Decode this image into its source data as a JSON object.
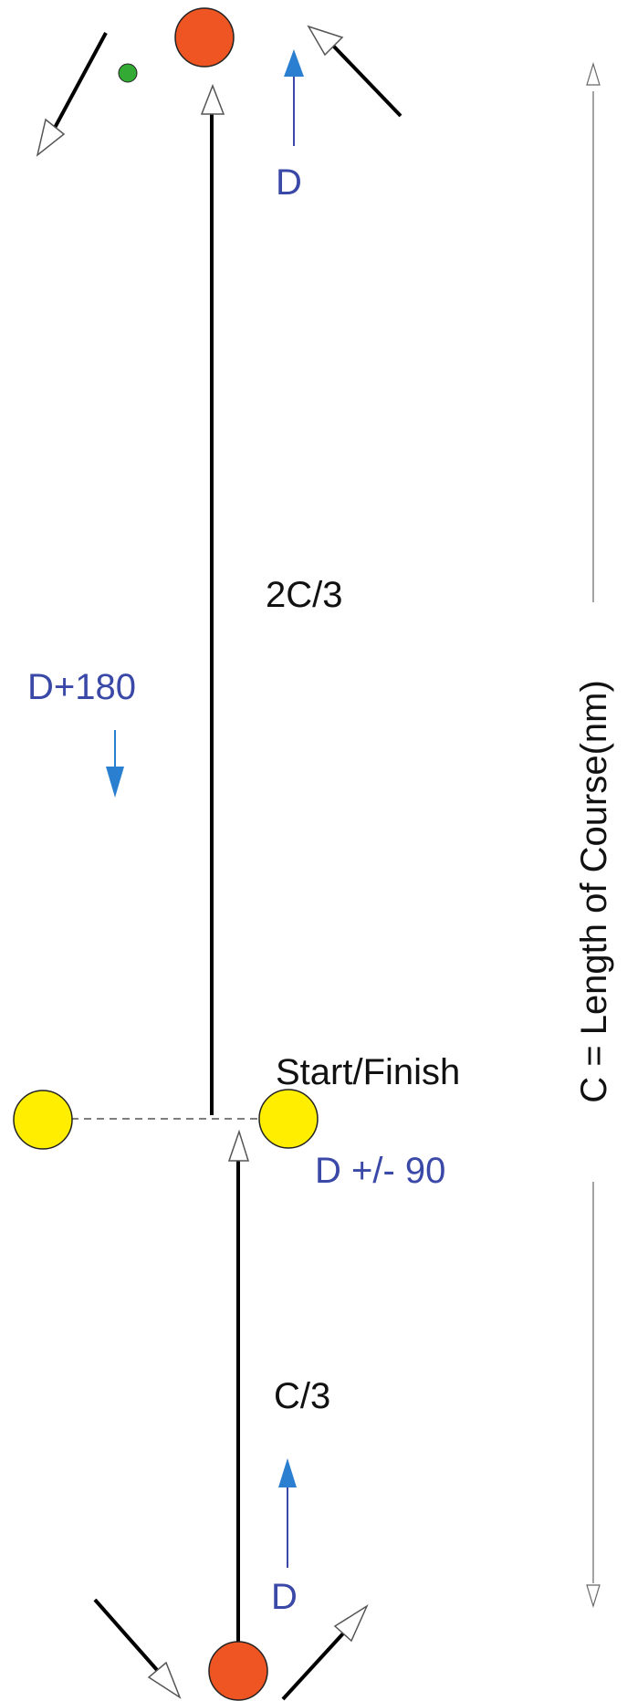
{
  "labels": {
    "top_leg": "2C/3",
    "bottom_leg": "C/3",
    "start_finish": "Start/Finish",
    "wind_top": "D",
    "wind_bottom": "D",
    "wind_reverse": "D+180",
    "line_bearing": "D +/- 90",
    "course_length": "C = Length of Course(nm)"
  },
  "colors": {
    "mark_red": "#ee5522",
    "mark_yellow": "#ffee00",
    "mark_green": "#33aa33",
    "arrow_blue": "#2a7fd0",
    "text_blue": "#3a49a8"
  }
}
